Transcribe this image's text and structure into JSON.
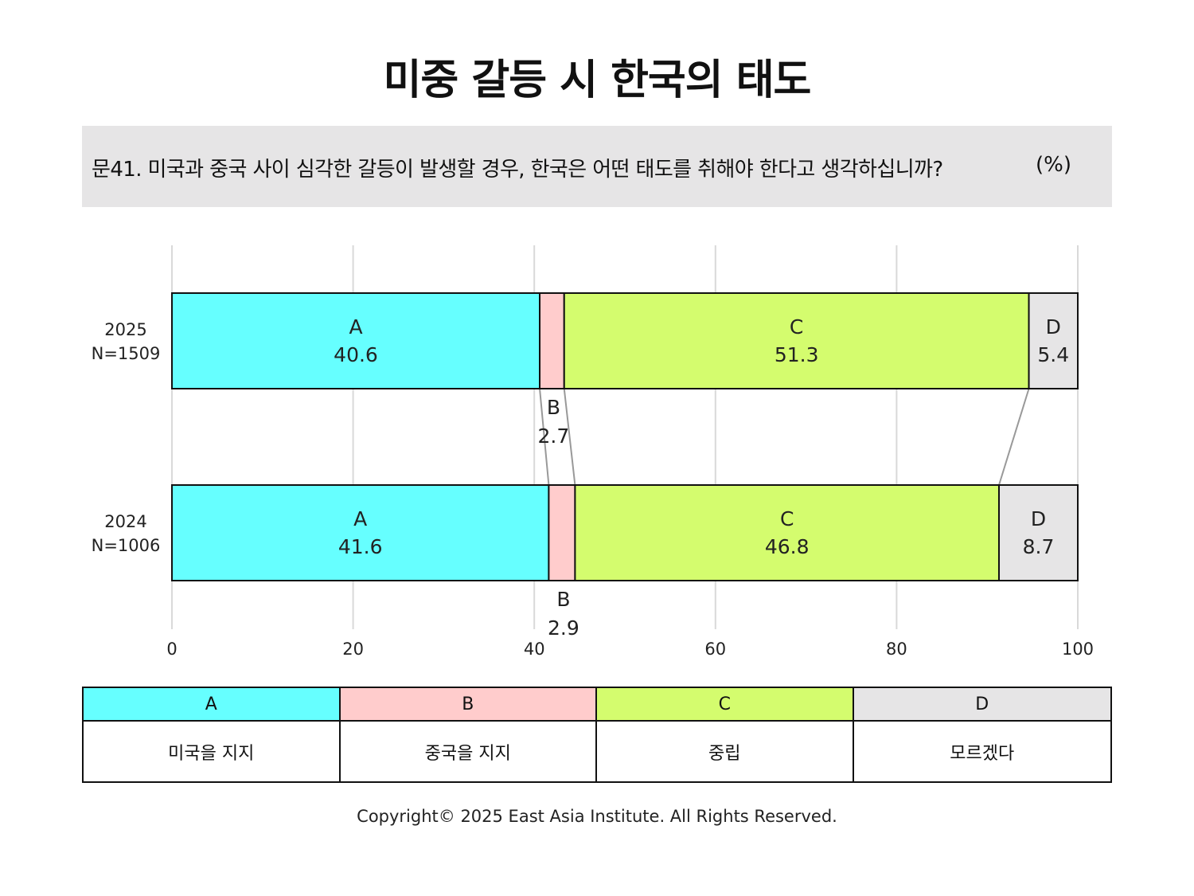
{
  "title": "미중 갈등 시 한국의 태도",
  "question": {
    "text": "문41. 미국과 중국 사이 심각한 갈등이 발생할 경우, 한국은 어떤 태도를 취해야 한다고 생각하십니까?",
    "unit": "(%)"
  },
  "chart_data": {
    "type": "bar",
    "orientation": "horizontal",
    "stacked": true,
    "xlim": [
      0,
      100
    ],
    "xticks": [
      0,
      20,
      40,
      60,
      80,
      100
    ],
    "grid": true,
    "rows": [
      {
        "year": "2025",
        "n": "N=1509"
      },
      {
        "year": "2024",
        "n": "N=1006"
      }
    ],
    "series": [
      {
        "name": "A",
        "color": "#66ffff",
        "values": [
          40.6,
          41.6
        ]
      },
      {
        "name": "B",
        "color": "#ffcccc",
        "values": [
          2.7,
          2.9
        ]
      },
      {
        "name": "C",
        "color": "#d4fc6e",
        "values": [
          51.3,
          46.8
        ]
      },
      {
        "name": "D",
        "color": "#e6e5e6",
        "values": [
          5.4,
          8.7
        ]
      }
    ]
  },
  "legend": [
    {
      "key": "A",
      "label": "미국을 지지",
      "color": "#66ffff"
    },
    {
      "key": "B",
      "label": "중국을 지지",
      "color": "#ffcccc"
    },
    {
      "key": "C",
      "label": "중립",
      "color": "#d4fc6e"
    },
    {
      "key": "D",
      "label": "모르겠다",
      "color": "#e6e5e6"
    }
  ],
  "copyright": "Copyright© 2025 East Asia Institute. All Rights Reserved."
}
